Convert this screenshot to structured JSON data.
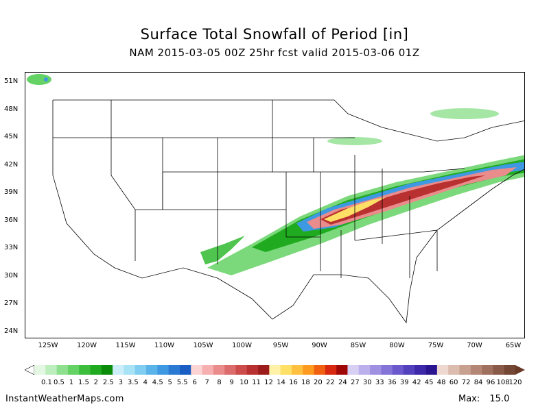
{
  "title": "Surface Total Snowfall of Period [in]",
  "subtitle": "NAM 2015-03-05 00Z 25hr fcst valid 2015-03-06 01Z",
  "footer": {
    "site": "InstantWeatherMaps.com",
    "max_label": "Max:",
    "max_value": "15.0"
  },
  "lat_labels": [
    "51N",
    "48N",
    "45N",
    "42N",
    "39N",
    "36N",
    "33N",
    "30N",
    "27N",
    "24N"
  ],
  "lon_labels": [
    "125W",
    "120W",
    "115W",
    "110W",
    "105W",
    "100W",
    "95W",
    "90W",
    "85W",
    "80W",
    "75W",
    "70W",
    "65W"
  ],
  "legend": {
    "labels": [
      "0.1",
      "0.5",
      "1",
      "1.5",
      "2",
      "2.5",
      "3",
      "3.5",
      "4",
      "4.5",
      "5",
      "5.5",
      "6",
      "7",
      "8",
      "9",
      "10",
      "11",
      "12",
      "14",
      "16",
      "18",
      "20",
      "22",
      "24",
      "27",
      "30",
      "33",
      "36",
      "39",
      "42",
      "45",
      "48",
      "60",
      "72",
      "84",
      "96",
      "108",
      "120"
    ],
    "colors": [
      "#e3f7e3",
      "#bdeebd",
      "#8ee08e",
      "#64d264",
      "#3cbe3c",
      "#1faa1f",
      "#0a8c0a",
      "#cceefa",
      "#a8e2f5",
      "#7fcdf0",
      "#5ab4ea",
      "#3f98e2",
      "#2a7ad4",
      "#1a5ec4",
      "#fcd4d4",
      "#f6b0b0",
      "#ea8c8c",
      "#dc6c6c",
      "#cc4c4c",
      "#b83030",
      "#9c1c1c",
      "#fff2a8",
      "#ffe066",
      "#ffc040",
      "#ff9a20",
      "#f06010",
      "#d82810",
      "#a00808",
      "#d8d0f4",
      "#bcb0ec",
      "#a090e2",
      "#8474d8",
      "#6a58cc",
      "#5240bc",
      "#3c28a8",
      "#2a1490",
      "#eed8d0",
      "#dcbcae",
      "#c8a090",
      "#b48676",
      "#a0705e",
      "#8a5a48",
      "#744634"
    ]
  },
  "map": {
    "region": "CONUS",
    "lat_range": [
      23,
      52
    ],
    "lon_range": [
      -128,
      -65
    ]
  }
}
